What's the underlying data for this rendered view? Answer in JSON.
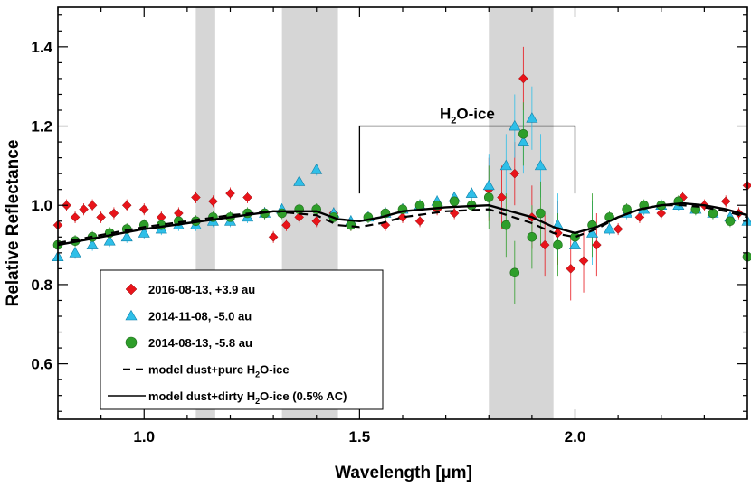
{
  "chart_data": {
    "type": "scatter",
    "xlabel": "Wavelength [µm]",
    "ylabel": "Relative Reflectance",
    "xlim": [
      0.8,
      2.4
    ],
    "ylim": [
      0.46,
      1.5
    ],
    "x_ticks": [
      1.0,
      1.5,
      2.0
    ],
    "x_tick_labels": [
      "1.0",
      "1.5",
      "2.0"
    ],
    "y_ticks": [
      0.6,
      0.8,
      1.0,
      1.2,
      1.4
    ],
    "y_tick_labels": [
      "0.6",
      "0.8",
      "1.0",
      "1.2",
      "1.4"
    ],
    "shaded_bands": [
      [
        1.12,
        1.165
      ],
      [
        1.32,
        1.45
      ],
      [
        1.8,
        1.95
      ]
    ],
    "annotation": {
      "text_prefix": "H",
      "text_sub": "2",
      "text_suffix": "O-ice",
      "x_start": 1.5,
      "x_end": 2.0,
      "y_top": 1.2,
      "y_bottom": 1.03
    },
    "series": [
      {
        "name": "2016-08-13, +3.9 au",
        "marker": "diamond",
        "color": "#e8141a",
        "x": [
          0.8,
          0.82,
          0.84,
          0.86,
          0.88,
          0.9,
          0.93,
          0.96,
          1.0,
          1.04,
          1.08,
          1.12,
          1.16,
          1.2,
          1.24,
          1.28,
          1.3,
          1.33,
          1.36,
          1.4,
          1.44,
          1.48,
          1.52,
          1.56,
          1.6,
          1.64,
          1.68,
          1.72,
          1.76,
          1.8,
          1.83,
          1.86,
          1.88,
          1.9,
          1.93,
          1.96,
          1.99,
          2.02,
          2.05,
          2.1,
          2.15,
          2.2,
          2.25,
          2.3,
          2.35,
          2.38,
          2.4
        ],
        "y": [
          0.95,
          1.0,
          0.97,
          0.99,
          1.0,
          0.97,
          0.98,
          1.0,
          0.99,
          0.97,
          0.98,
          1.02,
          1.01,
          1.03,
          1.02,
          0.98,
          0.92,
          0.95,
          0.97,
          0.96,
          0.98,
          0.95,
          0.97,
          0.95,
          0.97,
          0.96,
          0.99,
          0.98,
          1.0,
          1.04,
          1.02,
          1.08,
          1.32,
          0.97,
          0.9,
          0.93,
          0.84,
          0.86,
          0.9,
          0.94,
          0.97,
          0.98,
          1.02,
          1.0,
          1.01,
          0.98,
          1.05
        ]
      },
      {
        "name": "2014-11-08, -5.0 au",
        "marker": "triangle",
        "color": "#2fbfe8",
        "x": [
          0.8,
          0.84,
          0.88,
          0.92,
          0.96,
          1.0,
          1.04,
          1.08,
          1.12,
          1.16,
          1.2,
          1.24,
          1.28,
          1.32,
          1.36,
          1.4,
          1.44,
          1.48,
          1.52,
          1.56,
          1.6,
          1.64,
          1.68,
          1.72,
          1.76,
          1.8,
          1.84,
          1.86,
          1.88,
          1.9,
          1.92,
          1.96,
          2.0,
          2.04,
          2.08,
          2.12,
          2.16,
          2.2,
          2.24,
          2.28,
          2.32,
          2.36,
          2.4
        ],
        "y": [
          0.87,
          0.88,
          0.9,
          0.91,
          0.92,
          0.93,
          0.94,
          0.95,
          0.95,
          0.96,
          0.96,
          0.97,
          0.98,
          0.99,
          1.06,
          1.09,
          0.98,
          0.96,
          0.97,
          0.98,
          0.99,
          1.0,
          1.01,
          1.02,
          1.03,
          1.05,
          1.1,
          1.2,
          1.16,
          1.22,
          1.1,
          0.95,
          0.9,
          0.93,
          0.94,
          0.98,
          0.99,
          1.0,
          1.0,
          0.99,
          0.98,
          0.97,
          0.96
        ]
      },
      {
        "name": "2014-08-13, -5.8 au",
        "marker": "circle",
        "color": "#2e9e2a",
        "x": [
          0.8,
          0.84,
          0.88,
          0.92,
          0.96,
          1.0,
          1.04,
          1.08,
          1.12,
          1.16,
          1.2,
          1.24,
          1.28,
          1.32,
          1.36,
          1.4,
          1.44,
          1.48,
          1.52,
          1.56,
          1.6,
          1.64,
          1.68,
          1.72,
          1.76,
          1.8,
          1.84,
          1.86,
          1.88,
          1.9,
          1.92,
          1.96,
          2.0,
          2.04,
          2.08,
          2.12,
          2.16,
          2.2,
          2.24,
          2.28,
          2.32,
          2.36,
          2.4
        ],
        "y": [
          0.9,
          0.91,
          0.92,
          0.93,
          0.94,
          0.95,
          0.95,
          0.96,
          0.96,
          0.97,
          0.97,
          0.98,
          0.98,
          0.98,
          0.99,
          0.99,
          0.97,
          0.95,
          0.97,
          0.98,
          0.99,
          1.0,
          1.0,
          1.01,
          1.0,
          1.02,
          0.95,
          0.83,
          1.18,
          0.92,
          0.98,
          0.9,
          0.92,
          0.95,
          0.97,
          0.99,
          1.0,
          1.0,
          1.01,
          0.99,
          0.98,
          0.96,
          0.87
        ]
      }
    ],
    "models": [
      {
        "name_prefix": "model dust+pure H",
        "name_sub": "2",
        "name_suffix": "O-ice",
        "style": "dashed",
        "x": [
          0.8,
          0.9,
          1.0,
          1.1,
          1.2,
          1.3,
          1.4,
          1.45,
          1.5,
          1.55,
          1.6,
          1.7,
          1.8,
          1.9,
          1.95,
          2.0,
          2.05,
          2.1,
          2.15,
          2.2,
          2.25,
          2.3,
          2.35,
          2.4
        ],
        "y": [
          0.905,
          0.925,
          0.945,
          0.96,
          0.975,
          0.985,
          0.975,
          0.95,
          0.945,
          0.955,
          0.97,
          0.985,
          0.99,
          0.955,
          0.93,
          0.92,
          0.94,
          0.97,
          0.99,
          1.0,
          1.0,
          0.995,
          0.985,
          0.97
        ]
      },
      {
        "name_prefix": "model dust+dirty H",
        "name_sub": "2",
        "name_suffix": "O-ice (0.5% AC)",
        "style": "solid",
        "x": [
          0.8,
          0.9,
          1.0,
          1.1,
          1.2,
          1.3,
          1.4,
          1.45,
          1.5,
          1.55,
          1.6,
          1.7,
          1.8,
          1.9,
          1.95,
          2.0,
          2.05,
          2.1,
          2.15,
          2.2,
          2.25,
          2.3,
          2.35,
          2.4
        ],
        "y": [
          0.9,
          0.92,
          0.94,
          0.955,
          0.97,
          0.985,
          0.985,
          0.965,
          0.96,
          0.97,
          0.985,
          0.995,
          1.0,
          0.97,
          0.945,
          0.93,
          0.945,
          0.97,
          0.99,
          1.0,
          1.005,
          1.0,
          0.99,
          0.975
        ]
      }
    ],
    "legend_position": "bottom-left"
  }
}
